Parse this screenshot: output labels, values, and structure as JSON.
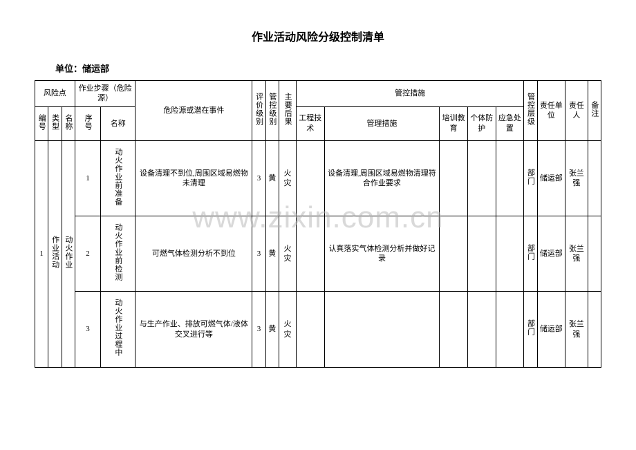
{
  "title": "作业活动风险分级控制清单",
  "unit_label": "单位：储运部",
  "watermark": "www.zixin.com.cn",
  "headers": {
    "risk_point": "风险点",
    "work_step": "作业步骤（危险源）",
    "hazard_event": "危险源或潜在事件",
    "eval_level": "评价级别",
    "control_level": "管控级别",
    "main_consequence": "主要后果",
    "control_measures": "管控措施",
    "control_layer": "管控层级",
    "resp_unit": "责任单位",
    "resp_person": "责任人",
    "remark": "备注",
    "seq_no": "编号",
    "type": "类型",
    "name": "名称",
    "sub_seq": "序号",
    "sub_name": "名称",
    "eng_tech": "工程技术",
    "mgmt_measure": "管理措施",
    "training": "培训教育",
    "personal_protect": "个体防护",
    "emergency": "应急处置"
  },
  "merged": {
    "seq_no": "1",
    "type": "作业活动",
    "name": "动火作业"
  },
  "rows": [
    {
      "sub_seq": "1",
      "sub_name": "动火作业前准备",
      "hazard": "设备清理不到位,周围区域易燃物未清理",
      "eval_level": "3",
      "control_level": "黄",
      "consequence": "火灾",
      "eng_tech": "",
      "mgmt_measure": "设备清理,周围区域易燃物清理符合作业要求",
      "training": "",
      "protect": "",
      "emergency": "",
      "layer": "部门",
      "resp_unit": "储运部",
      "resp_person": "张兰强",
      "remark": ""
    },
    {
      "sub_seq": "2",
      "sub_name": "动火作业前检测",
      "hazard": "可燃气体检测分析不到位",
      "eval_level": "3",
      "control_level": "黄",
      "consequence": "火灾",
      "eng_tech": "",
      "mgmt_measure": "认真落实气体检测分析并做好记录",
      "training": "",
      "protect": "",
      "emergency": "",
      "layer": "部门",
      "resp_unit": "储运部",
      "resp_person": "张兰强",
      "remark": ""
    },
    {
      "sub_seq": "3",
      "sub_name": "动火作业过程中",
      "hazard": "与生产作业、排放可燃气体/液体交叉进行等",
      "eval_level": "3",
      "control_level": "黄",
      "consequence": "火灾",
      "eng_tech": "",
      "mgmt_measure": "",
      "training": "",
      "protect": "",
      "emergency": "",
      "layer": "部门",
      "resp_unit": "储运部",
      "resp_person": "张兰强",
      "remark": ""
    }
  ],
  "col_widths": {
    "seq_no": "22px",
    "type": "20px",
    "name": "20px",
    "sub_seq": "20px",
    "sub_name": "30px",
    "hazard": "52px",
    "eval_level": "28px",
    "control_level": "28px",
    "consequence": "28px",
    "eng_tech": "35px",
    "mgmt_measure": "48px",
    "training": "35px",
    "protect": "35px",
    "emergency": "35px",
    "layer": "20px",
    "resp_unit": "60px",
    "resp_person": "60px",
    "remark": "20px"
  }
}
